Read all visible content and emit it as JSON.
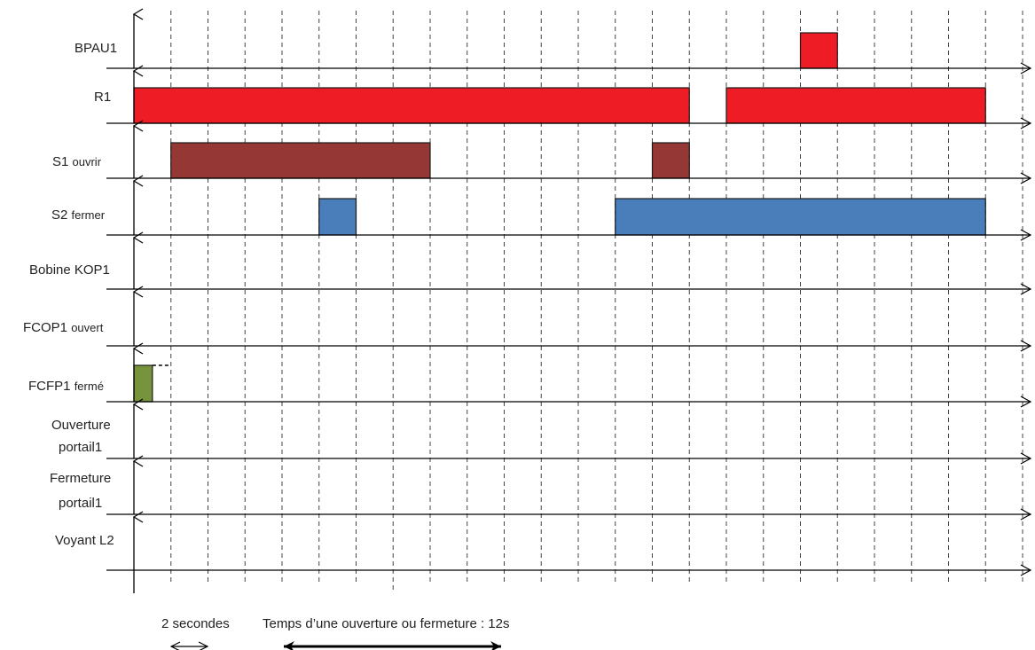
{
  "diagram": {
    "type": "timing-chronogram",
    "colors": {
      "axis": "#000000",
      "grid": "#444444",
      "pulse_border": "#1a1a1a"
    },
    "signals": [
      {
        "id": "bpau1",
        "label": "BPAU1",
        "label_small": "",
        "pulses": [
          {
            "start": 18,
            "end": 19,
            "color": "#ee1c24"
          }
        ]
      },
      {
        "id": "r1",
        "label": "R1",
        "label_small": "",
        "pulses": [
          {
            "start": 0,
            "end": 15,
            "color": "#ee1c24"
          },
          {
            "start": 16,
            "end": 23,
            "color": "#ee1c24"
          }
        ]
      },
      {
        "id": "s1",
        "label": "S1 ",
        "label_small": "ouvrir",
        "pulses": [
          {
            "start": 1,
            "end": 8,
            "color": "#953735"
          },
          {
            "start": 14,
            "end": 15,
            "color": "#953735"
          }
        ]
      },
      {
        "id": "s2",
        "label": "S2 ",
        "label_small": "fermer",
        "pulses": [
          {
            "start": 5,
            "end": 6,
            "color": "#4a7ebb"
          },
          {
            "start": 13,
            "end": 23,
            "color": "#4a7ebb"
          }
        ]
      },
      {
        "id": "kop1",
        "label": "Bobine KOP1",
        "label_small": "",
        "pulses": []
      },
      {
        "id": "fcop1",
        "label": "FCOP1 ",
        "label_small": "ouvert",
        "pulses": []
      },
      {
        "id": "fcfp1",
        "label": "FCFP1 ",
        "label_small": "fermé",
        "pulses": [
          {
            "start": 0,
            "end": 0.5,
            "color": "#77933c"
          }
        ],
        "dashed_continuation": {
          "start": 0.5,
          "end": 1
        }
      },
      {
        "id": "ouverture",
        "label": "Ouverture",
        "label2": "portail1",
        "pulses": []
      },
      {
        "id": "fermeture",
        "label": "Fermeture",
        "label2": "portail1",
        "pulses": []
      },
      {
        "id": "voyant",
        "label": "Voyant L2",
        "label_small": "",
        "pulses": []
      }
    ],
    "notes": {
      "two_seconds": "2 secondes",
      "cycle_time": "Temps d’une ouverture ou fermeture : 12s"
    },
    "scale": {
      "step_seconds": 2,
      "steps": 24
    }
  }
}
